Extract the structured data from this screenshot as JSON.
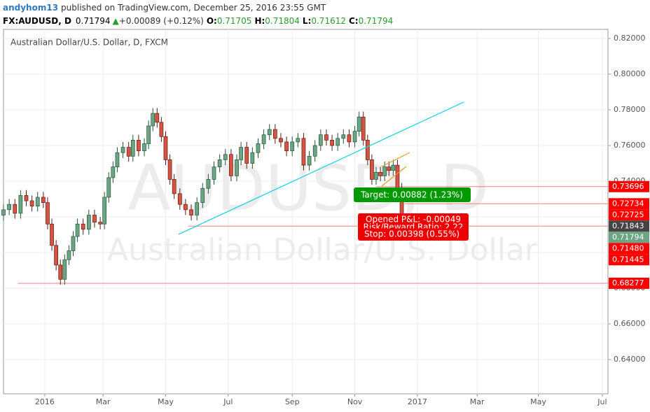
{
  "header": {
    "author": "andyhom13",
    "published": "published on TradingView.com, December 25, 2016 23:55 GMT",
    "symbol": "FX:AUDUSD, D",
    "last": "0.71794",
    "arrow": "▲",
    "change": "+0.00089 (+0.12%)",
    "o_label": "O:",
    "o": "0.71705",
    "h_label": "H:",
    "h": "0.71804",
    "l_label": "L:",
    "l": "0.71612",
    "c_label": "C:",
    "c": "0.71794"
  },
  "chart_data": {
    "type": "candlestick",
    "title": "Australian Dollar/U.S. Dollar, D, FXCM",
    "watermark": "AUDUSD, D",
    "watermark_sub": "Australian Dollar/U.S. Dollar",
    "up_color": "#6ba583",
    "down_color": "#d75442",
    "grid": true,
    "x": [
      0,
      4,
      8,
      12,
      16,
      20,
      24,
      28,
      31,
      34,
      37,
      40,
      43,
      46,
      49,
      52,
      56,
      60,
      64,
      68,
      71,
      74,
      77,
      80,
      84,
      88,
      91,
      95,
      99,
      102,
      105,
      108,
      111,
      114,
      117,
      120,
      124,
      128,
      132,
      136,
      140,
      144,
      148,
      152,
      156,
      160,
      164,
      167,
      171,
      175,
      179,
      183,
      187,
      191,
      195,
      199,
      203,
      207,
      211,
      215,
      219,
      223,
      227,
      231,
      235,
      239,
      243,
      247,
      250,
      253,
      256,
      259,
      262,
      265,
      268,
      271,
      274,
      277,
      280,
      282
    ],
    "open": [
      0.721,
      0.724,
      0.727,
      0.722,
      0.732,
      0.729,
      0.726,
      0.731,
      0.728,
      0.716,
      0.704,
      0.693,
      0.685,
      0.696,
      0.701,
      0.709,
      0.716,
      0.713,
      0.721,
      0.717,
      0.716,
      0.731,
      0.742,
      0.748,
      0.756,
      0.759,
      0.754,
      0.763,
      0.757,
      0.761,
      0.771,
      0.778,
      0.773,
      0.765,
      0.752,
      0.741,
      0.733,
      0.727,
      0.724,
      0.721,
      0.728,
      0.736,
      0.741,
      0.748,
      0.752,
      0.755,
      0.743,
      0.752,
      0.759,
      0.75,
      0.756,
      0.761,
      0.766,
      0.769,
      0.764,
      0.762,
      0.757,
      0.762,
      0.764,
      0.749,
      0.754,
      0.76,
      0.766,
      0.763,
      0.76,
      0.764,
      0.766,
      0.762,
      0.768,
      0.776,
      0.763,
      0.752,
      0.741,
      0.745,
      0.743,
      0.748,
      0.746,
      0.749,
      0.736,
      0.71705
    ],
    "high": [
      0.727,
      0.73,
      0.73,
      0.735,
      0.735,
      0.732,
      0.734,
      0.734,
      0.731,
      0.719,
      0.707,
      0.696,
      0.699,
      0.704,
      0.712,
      0.719,
      0.719,
      0.724,
      0.724,
      0.72,
      0.734,
      0.745,
      0.751,
      0.759,
      0.762,
      0.762,
      0.766,
      0.766,
      0.764,
      0.774,
      0.781,
      0.781,
      0.776,
      0.768,
      0.755,
      0.744,
      0.736,
      0.73,
      0.727,
      0.731,
      0.739,
      0.744,
      0.751,
      0.755,
      0.758,
      0.758,
      0.755,
      0.762,
      0.762,
      0.759,
      0.764,
      0.769,
      0.772,
      0.772,
      0.767,
      0.765,
      0.765,
      0.767,
      0.767,
      0.757,
      0.763,
      0.769,
      0.769,
      0.766,
      0.767,
      0.769,
      0.769,
      0.771,
      0.779,
      0.779,
      0.766,
      0.755,
      0.748,
      0.748,
      0.751,
      0.751,
      0.752,
      0.752,
      0.739,
      0.71804
    ],
    "low": [
      0.718,
      0.721,
      0.719,
      0.719,
      0.726,
      0.723,
      0.723,
      0.725,
      0.713,
      0.701,
      0.69,
      0.682,
      0.682,
      0.693,
      0.698,
      0.706,
      0.71,
      0.71,
      0.714,
      0.713,
      0.713,
      0.728,
      0.739,
      0.745,
      0.753,
      0.751,
      0.751,
      0.754,
      0.754,
      0.758,
      0.768,
      0.77,
      0.762,
      0.749,
      0.738,
      0.73,
      0.724,
      0.721,
      0.718,
      0.718,
      0.725,
      0.733,
      0.738,
      0.745,
      0.749,
      0.74,
      0.74,
      0.749,
      0.747,
      0.747,
      0.753,
      0.758,
      0.763,
      0.761,
      0.759,
      0.754,
      0.754,
      0.759,
      0.746,
      0.746,
      0.751,
      0.757,
      0.76,
      0.757,
      0.757,
      0.761,
      0.759,
      0.759,
      0.765,
      0.76,
      0.749,
      0.738,
      0.738,
      0.74,
      0.74,
      0.743,
      0.743,
      0.733,
      0.7146,
      0.71612
    ],
    "close": [
      0.724,
      0.727,
      0.722,
      0.732,
      0.729,
      0.726,
      0.731,
      0.728,
      0.716,
      0.704,
      0.693,
      0.685,
      0.696,
      0.701,
      0.709,
      0.716,
      0.713,
      0.721,
      0.717,
      0.716,
      0.731,
      0.742,
      0.748,
      0.756,
      0.759,
      0.754,
      0.763,
      0.757,
      0.761,
      0.771,
      0.778,
      0.773,
      0.765,
      0.752,
      0.741,
      0.733,
      0.727,
      0.724,
      0.721,
      0.728,
      0.736,
      0.741,
      0.748,
      0.752,
      0.755,
      0.743,
      0.752,
      0.759,
      0.75,
      0.756,
      0.761,
      0.766,
      0.769,
      0.764,
      0.762,
      0.757,
      0.762,
      0.764,
      0.749,
      0.754,
      0.76,
      0.766,
      0.763,
      0.76,
      0.764,
      0.766,
      0.762,
      0.768,
      0.776,
      0.763,
      0.752,
      0.741,
      0.745,
      0.743,
      0.748,
      0.746,
      0.749,
      0.736,
      0.7176,
      0.71794
    ],
    "xlim": [
      0,
      425
    ],
    "ylim": [
      0.6208,
      0.8251
    ],
    "xticks": [
      {
        "value": 29,
        "label": "2016"
      },
      {
        "value": 70,
        "label": "Mar"
      },
      {
        "value": 114,
        "label": "May"
      },
      {
        "value": 158,
        "label": "Jul"
      },
      {
        "value": 203,
        "label": "Sep"
      },
      {
        "value": 247,
        "label": "Nov"
      },
      {
        "value": 291,
        "label": "2017"
      },
      {
        "value": 333,
        "label": "Mar"
      },
      {
        "value": 376,
        "label": "May"
      },
      {
        "value": 421,
        "label": "Jul"
      }
    ],
    "yticks": [
      {
        "value": 0.64,
        "label": "0.64000"
      },
      {
        "value": 0.66,
        "label": "0.66000"
      },
      {
        "value": 0.68,
        "label": "0.68000"
      },
      {
        "value": 0.7,
        "label": "0.70000"
      },
      {
        "value": 0.72,
        "label": "0.72000"
      },
      {
        "value": 0.74,
        "label": "0.74000"
      },
      {
        "value": 0.76,
        "label": "0.76000"
      },
      {
        "value": 0.78,
        "label": "0.78000"
      },
      {
        "value": 0.8,
        "label": "0.80000"
      },
      {
        "value": 0.82,
        "label": "0.82000"
      }
    ],
    "price_tags": [
      {
        "value": 0.73696,
        "color": "#ff0000"
      },
      {
        "value": 0.72734,
        "color": "#ff0000"
      },
      {
        "value": 0.72725,
        "color": "#ff0000"
      },
      {
        "value": 0.71843,
        "color": "#444444"
      },
      {
        "value": 0.71794,
        "color": "#6ba583"
      },
      {
        "value": 0.7148,
        "label": "0.71480",
        "color": "#ff0000"
      },
      {
        "value": 0.71445,
        "color": "#ff0000"
      },
      {
        "value": 0.68277,
        "color": "#ff0000"
      }
    ],
    "levels": [
      {
        "value": 0.73696,
        "from": 262
      },
      {
        "value": 0.72734,
        "from": 282
      },
      {
        "value": 0.7148,
        "from": 130
      },
      {
        "value": 0.68277,
        "from": 10
      }
    ],
    "target_label": "Target: 0.00882 (1.23%)",
    "pnl_label": "Opened P&L: -0.00049",
    "rr_label": "Risk/Reward Ratio: 2.22",
    "stop_label": "Stop: 0.00398 (0.55%)"
  }
}
